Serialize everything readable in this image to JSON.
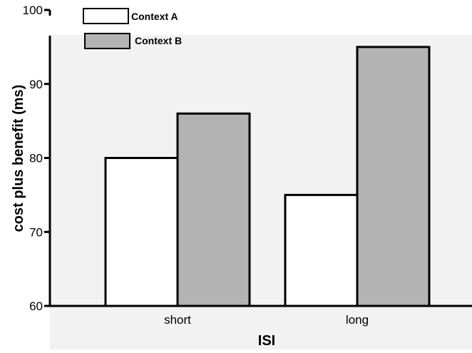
{
  "chart_data": {
    "type": "bar",
    "categories": [
      "short",
      "long"
    ],
    "series": [
      {
        "name": "Context A",
        "values": [
          80,
          75
        ],
        "color": "#ffffff"
      },
      {
        "name": "Context B",
        "values": [
          86,
          95
        ],
        "color": "#b3b3b3"
      }
    ],
    "xlabel": "ISI",
    "ylabel": "cost plus benefit (ms)",
    "ylim": [
      60,
      100
    ],
    "yticks": [
      "60",
      "70",
      "80",
      "90",
      "100"
    ],
    "grid": false,
    "legend": "top-left",
    "plot_background": "#f2f2f2"
  }
}
